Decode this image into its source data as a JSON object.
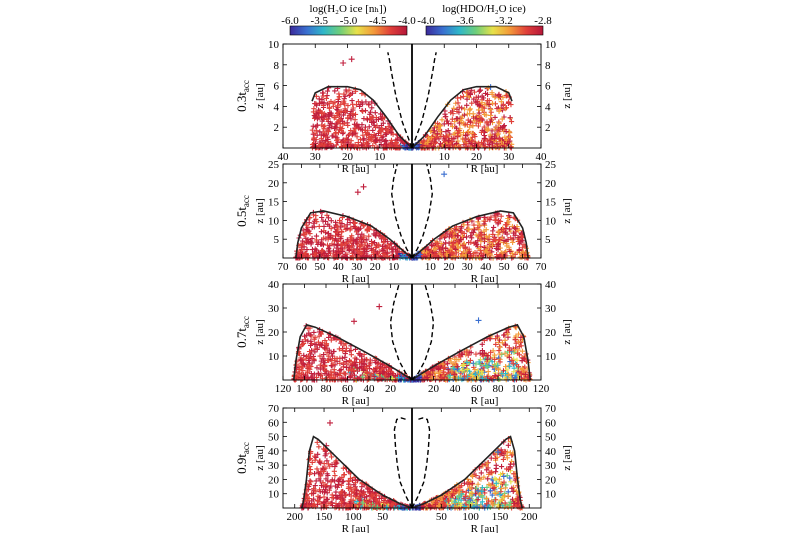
{
  "colorbars": [
    {
      "label": "log(H₂O ice [nₕ])",
      "ticks": [
        "-6.0",
        "-3.5",
        "-5.0",
        "-4.5",
        "-4.0"
      ],
      "colors": [
        "#3b2a9a",
        "#3a6fd0",
        "#2fb7c9",
        "#6fce7a",
        "#e7e14a",
        "#f39a3a",
        "#e0403a",
        "#b5173a"
      ]
    },
    {
      "label": "log(HDO/H₂O ice)",
      "ticks": [
        "-4.0",
        "-3.6",
        "-3.2",
        "-2.8"
      ],
      "colors": [
        "#3b2a9a",
        "#3a6fd0",
        "#2fb7c9",
        "#6fce7a",
        "#e7e14a",
        "#f39a3a",
        "#e0403a",
        "#b5173a"
      ]
    }
  ],
  "chart_data": [
    {
      "type": "scatter",
      "row_label": "0.3t",
      "row_sub": "acc",
      "xlabel": "R [au]",
      "ylabel": "z [au]",
      "xmax": 40,
      "ymax": 10,
      "xticks": [
        40,
        30,
        20,
        10
      ],
      "yticks": [
        2,
        4,
        6,
        8,
        10
      ],
      "outer_boundary": [
        [
          0,
          0
        ],
        [
          4,
          1.2
        ],
        [
          8,
          3
        ],
        [
          12,
          4.6
        ],
        [
          16,
          5.6
        ],
        [
          20,
          5.9
        ],
        [
          26,
          5.9
        ],
        [
          30,
          5.3
        ],
        [
          31,
          4.5
        ]
      ],
      "inner_curve": [
        [
          0,
          0
        ],
        [
          3,
          2.5
        ],
        [
          5,
          5
        ],
        [
          6.5,
          7.5
        ],
        [
          7,
          8.5
        ],
        [
          7.5,
          9.2
        ]
      ]
    },
    {
      "type": "scatter",
      "row_label": "0.5t",
      "row_sub": "acc",
      "xlabel": "R [au]",
      "ylabel": "z [au]",
      "xmax": 70,
      "ymax": 25,
      "xticks": [
        70,
        60,
        50,
        40,
        30,
        20,
        10
      ],
      "yticks": [
        5,
        10,
        15,
        20,
        25
      ],
      "outer_boundary": [
        [
          0,
          0
        ],
        [
          5,
          2
        ],
        [
          12,
          5
        ],
        [
          22,
          8.5
        ],
        [
          35,
          11
        ],
        [
          48,
          12.5
        ],
        [
          55,
          12
        ],
        [
          60,
          8
        ],
        [
          62,
          4
        ],
        [
          63,
          0
        ]
      ],
      "inner_curve": [
        [
          0,
          0
        ],
        [
          3,
          2.5
        ],
        [
          6,
          6
        ],
        [
          9,
          11
        ],
        [
          11,
          17
        ],
        [
          10,
          21
        ],
        [
          8,
          25
        ]
      ]
    },
    {
      "type": "scatter",
      "row_label": "0.7t",
      "row_sub": "acc",
      "xlabel": "R [au]",
      "ylabel": "z [au]",
      "xmax": 120,
      "ymax": 40,
      "xticks": [
        120,
        100,
        80,
        60,
        40,
        20
      ],
      "yticks": [
        10,
        20,
        30,
        40
      ],
      "outer_boundary": [
        [
          0,
          0
        ],
        [
          10,
          3
        ],
        [
          25,
          7
        ],
        [
          45,
          12
        ],
        [
          70,
          18
        ],
        [
          90,
          22
        ],
        [
          98,
          23
        ],
        [
          104,
          18
        ],
        [
          108,
          8
        ],
        [
          110,
          0
        ]
      ],
      "inner_curve": [
        [
          0,
          0
        ],
        [
          6,
          3
        ],
        [
          12,
          8
        ],
        [
          18,
          16
        ],
        [
          20,
          24
        ],
        [
          17,
          32
        ],
        [
          12,
          40
        ]
      ]
    },
    {
      "type": "scatter",
      "row_label": "0.9t",
      "row_sub": "acc",
      "xlabel": "R [au]",
      "ylabel": "z [au]",
      "xmax": 220,
      "ymax": 70,
      "xticks": [
        200,
        150,
        100,
        50
      ],
      "yticks": [
        10,
        20,
        30,
        40,
        50,
        60,
        70
      ],
      "outer_boundary": [
        [
          0,
          0
        ],
        [
          20,
          3
        ],
        [
          50,
          9
        ],
        [
          90,
          20
        ],
        [
          130,
          36
        ],
        [
          160,
          48
        ],
        [
          168,
          50
        ],
        [
          175,
          40
        ],
        [
          180,
          20
        ],
        [
          185,
          5
        ],
        [
          188,
          0
        ]
      ],
      "inner_curve": [
        [
          0,
          0
        ],
        [
          10,
          8
        ],
        [
          20,
          18
        ],
        [
          25,
          30
        ],
        [
          28,
          42
        ],
        [
          30,
          55
        ],
        [
          26,
          62
        ],
        [
          18,
          63
        ],
        [
          10,
          62
        ]
      ]
    }
  ]
}
